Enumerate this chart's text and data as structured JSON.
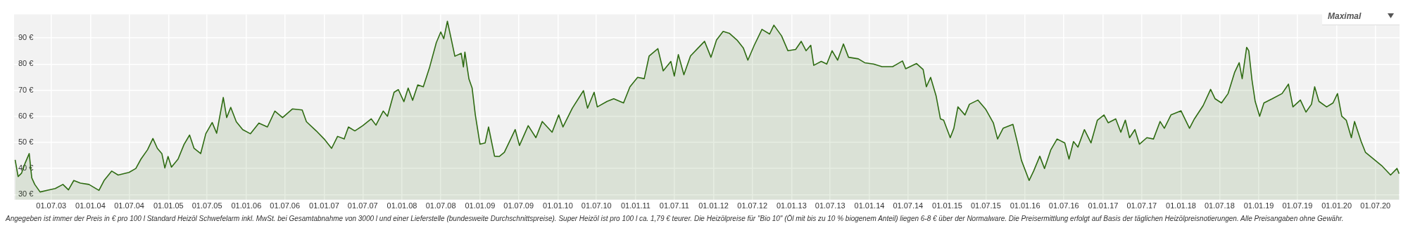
{
  "chart_data": {
    "type": "area",
    "color": "#2e6b12",
    "grid": true,
    "legend": false,
    "annotations": [
      "Angegeben ist immer der Preis in € pro 100 l Standard Heizöl Schwefelarm inkl. MwSt. bei Gesamtabnahme von 3000 l und einer Lieferstelle (bundesweite Durchschnittspreise). Super Heizöl ist pro 100 l ca. 1,79 € teurer. Die Heizölpreise für \"Bio 10\" (Öl mit bis zu 10 % biogenem Anteil) liegen 6-8 € über der Normalware. Die Preisermittlung erfolgt auf Basis der täglichen Heizölpreisnotierungen. Alle Preisangaben ohne Gewähr.",
      "Maximal"
    ],
    "xlim": [
      "2003-01-08",
      "2020-10-22"
    ],
    "xticks": [
      {
        "value": "2003-07-01",
        "label": "01.07.03"
      },
      {
        "value": "2004-01-01",
        "label": "01.01.04"
      },
      {
        "value": "2004-07-01",
        "label": "01.07.04"
      },
      {
        "value": "2005-01-01",
        "label": "01.01.05"
      },
      {
        "value": "2005-07-01",
        "label": "01.07.05"
      },
      {
        "value": "2006-01-01",
        "label": "01.01.06"
      },
      {
        "value": "2006-07-01",
        "label": "01.07.06"
      },
      {
        "value": "2007-01-01",
        "label": "01.01.07"
      },
      {
        "value": "2007-07-01",
        "label": "01.07.07"
      },
      {
        "value": "2008-01-01",
        "label": "01.01.08"
      },
      {
        "value": "2008-07-01",
        "label": "01.07.08"
      },
      {
        "value": "2009-01-01",
        "label": "01.01.09"
      },
      {
        "value": "2009-07-01",
        "label": "01.07.09"
      },
      {
        "value": "2010-01-01",
        "label": "01.01.10"
      },
      {
        "value": "2010-07-01",
        "label": "01.07.10"
      },
      {
        "value": "2011-01-01",
        "label": "01.01.11"
      },
      {
        "value": "2011-07-01",
        "label": "01.07.11"
      },
      {
        "value": "2012-01-01",
        "label": "01.01.12"
      },
      {
        "value": "2012-07-01",
        "label": "01.07.12"
      },
      {
        "value": "2013-01-01",
        "label": "01.01.13"
      },
      {
        "value": "2013-07-01",
        "label": "01.07.13"
      },
      {
        "value": "2014-01-01",
        "label": "01.01.14"
      },
      {
        "value": "2014-07-01",
        "label": "01.07.14"
      },
      {
        "value": "2015-01-01",
        "label": "01.01.15"
      },
      {
        "value": "2015-07-01",
        "label": "01.07.15"
      },
      {
        "value": "2016-01-01",
        "label": "01.01.16"
      },
      {
        "value": "2016-07-01",
        "label": "01.07.16"
      },
      {
        "value": "2017-01-01",
        "label": "01.01.17"
      },
      {
        "value": "2017-07-01",
        "label": "01.07.17"
      },
      {
        "value": "2018-01-01",
        "label": "01.01.18"
      },
      {
        "value": "2018-07-01",
        "label": "01.07.18"
      },
      {
        "value": "2019-01-01",
        "label": "01.01.19"
      },
      {
        "value": "2019-07-01",
        "label": "01.07.19"
      },
      {
        "value": "2020-01-01",
        "label": "01.01.20"
      },
      {
        "value": "2020-07-01",
        "label": "01.07.20"
      }
    ],
    "ylim": [
      28,
      99
    ],
    "yticks": [
      {
        "value": 30,
        "label": "30 €"
      },
      {
        "value": 40,
        "label": "40 €"
      },
      {
        "value": 50,
        "label": "50 €"
      },
      {
        "value": 60,
        "label": "60 €"
      },
      {
        "value": 70,
        "label": "70 €"
      },
      {
        "value": 80,
        "label": "80 €"
      },
      {
        "value": 90,
        "label": "90 €"
      }
    ],
    "x": [
      "2003-01-13",
      "2003-01-27",
      "2003-02-12",
      "2003-03-01",
      "2003-03-20",
      "2003-04-01",
      "2003-04-15",
      "2003-05-10",
      "2003-06-20",
      "2003-07-20",
      "2003-08-25",
      "2003-09-20",
      "2003-10-15",
      "2003-11-15",
      "2003-12-25",
      "2004-02-10",
      "2004-03-05",
      "2004-04-10",
      "2004-05-10",
      "2004-06-30",
      "2004-08-01",
      "2004-08-25",
      "2004-09-25",
      "2004-10-20",
      "2004-11-10",
      "2004-12-01",
      "2004-12-15",
      "2004-12-30",
      "2005-01-15",
      "2005-02-15",
      "2005-03-15",
      "2005-04-10",
      "2005-05-01",
      "2005-06-01",
      "2005-06-25",
      "2005-07-25",
      "2005-08-15",
      "2005-09-15",
      "2005-10-01",
      "2005-10-20",
      "2005-11-15",
      "2005-12-15",
      "2006-01-20",
      "2006-03-01",
      "2006-04-10",
      "2006-05-15",
      "2006-06-20",
      "2006-08-05",
      "2006-09-20",
      "2006-10-10",
      "2006-11-25",
      "2007-01-01",
      "2007-02-05",
      "2007-03-05",
      "2007-04-05",
      "2007-04-25",
      "2007-05-25",
      "2007-07-01",
      "2007-08-10",
      "2007-09-01",
      "2007-10-05",
      "2007-10-25",
      "2007-11-25",
      "2007-12-15",
      "2008-01-10",
      "2008-01-30",
      "2008-02-20",
      "2008-03-15",
      "2008-04-10",
      "2008-05-10",
      "2008-06-10",
      "2008-07-01",
      "2008-07-15",
      "2008-08-01",
      "2008-08-20",
      "2008-09-05",
      "2008-10-05",
      "2008-10-15",
      "2008-10-22",
      "2008-11-10",
      "2008-11-25",
      "2008-12-10",
      "2009-01-01",
      "2009-01-25",
      "2009-02-10",
      "2009-03-10",
      "2009-04-01",
      "2009-04-25",
      "2009-06-15",
      "2009-07-05",
      "2009-08-15",
      "2009-09-20",
      "2009-10-20",
      "2009-12-05",
      "2010-01-05",
      "2010-01-25",
      "2010-03-10",
      "2010-05-01",
      "2010-05-20",
      "2010-06-20",
      "2010-07-05",
      "2010-08-20",
      "2010-09-20",
      "2010-11-05",
      "2010-12-05",
      "2011-01-10",
      "2011-02-10",
      "2011-03-05",
      "2011-04-15",
      "2011-05-10",
      "2011-06-15",
      "2011-07-01",
      "2011-07-20",
      "2011-08-15",
      "2011-09-15",
      "2011-10-20",
      "2011-11-20",
      "2011-12-20",
      "2012-01-15",
      "2012-02-15",
      "2012-03-15",
      "2012-04-20",
      "2012-05-20",
      "2012-06-10",
      "2012-07-10",
      "2012-08-15",
      "2012-09-20",
      "2012-10-10",
      "2012-11-15",
      "2012-12-15",
      "2013-01-20",
      "2013-02-15",
      "2013-03-10",
      "2013-04-01",
      "2013-04-15",
      "2013-05-20",
      "2013-06-15",
      "2013-07-10",
      "2013-08-05",
      "2013-09-01",
      "2013-09-25",
      "2013-11-10",
      "2013-12-10",
      "2014-01-20",
      "2014-03-01",
      "2014-04-20",
      "2014-06-05",
      "2014-06-20",
      "2014-08-10",
      "2014-09-10",
      "2014-09-25",
      "2014-10-15",
      "2014-11-10",
      "2014-11-30",
      "2014-12-15",
      "2015-01-15",
      "2015-02-01",
      "2015-02-20",
      "2015-03-25",
      "2015-04-15",
      "2015-05-25",
      "2015-07-01",
      "2015-08-05",
      "2015-08-25",
      "2015-09-20",
      "2015-11-05",
      "2015-11-25",
      "2015-12-15",
      "2016-01-20",
      "2016-02-10",
      "2016-03-10",
      "2016-04-01",
      "2016-05-01",
      "2016-05-30",
      "2016-07-05",
      "2016-07-25",
      "2016-08-15",
      "2016-09-05",
      "2016-10-05",
      "2016-11-05",
      "2016-12-05",
      "2017-01-05",
      "2017-01-25",
      "2017-03-01",
      "2017-03-25",
      "2017-04-15",
      "2017-05-05",
      "2017-05-30",
      "2017-06-20",
      "2017-07-25",
      "2017-08-25",
      "2017-09-25",
      "2017-10-15",
      "2017-11-15",
      "2018-01-01",
      "2018-02-10",
      "2018-03-05",
      "2018-04-15",
      "2018-05-20",
      "2018-06-10",
      "2018-07-10",
      "2018-08-10",
      "2018-09-10",
      "2018-10-01",
      "2018-10-15",
      "2018-11-05",
      "2018-11-15",
      "2018-11-30",
      "2018-12-15",
      "2019-01-05",
      "2019-01-25",
      "2019-03-05",
      "2019-04-20",
      "2019-05-20",
      "2019-06-10",
      "2019-07-15",
      "2019-08-10",
      "2019-09-05",
      "2019-09-20",
      "2019-10-10",
      "2019-11-15",
      "2019-12-15",
      "2020-01-05",
      "2020-01-25",
      "2020-02-15",
      "2020-03-10",
      "2020-03-25",
      "2020-04-25",
      "2020-05-15",
      "2020-06-15",
      "2020-07-30",
      "2020-09-10",
      "2020-10-10",
      "2020-10-20"
    ],
    "values": [
      43.3,
      36.9,
      38.2,
      42.1,
      45.7,
      36.4,
      33.9,
      31.0,
      31.8,
      32.3,
      33.9,
      31.8,
      35.4,
      34.4,
      33.9,
      31.6,
      35.4,
      39.0,
      37.5,
      38.5,
      40.0,
      43.6,
      47.2,
      51.5,
      47.7,
      45.7,
      40.2,
      44.6,
      40.5,
      43.6,
      49.2,
      52.8,
      47.7,
      45.7,
      53.3,
      57.6,
      53.5,
      67.2,
      59.5,
      63.4,
      57.9,
      54.9,
      53.3,
      57.4,
      55.9,
      62.0,
      59.5,
      62.8,
      62.4,
      57.9,
      54.4,
      51.3,
      47.7,
      52.3,
      51.3,
      55.9,
      54.4,
      56.4,
      59.0,
      56.6,
      62.0,
      60.0,
      69.2,
      70.2,
      65.6,
      70.8,
      66.1,
      72.0,
      71.3,
      78.9,
      88.2,
      92.3,
      89.7,
      96.4,
      89.2,
      83.0,
      84.1,
      78.9,
      84.6,
      74.3,
      70.8,
      60.5,
      49.3,
      49.8,
      55.9,
      44.7,
      44.6,
      46.2,
      54.9,
      48.8,
      56.4,
      51.8,
      58.0,
      53.9,
      60.5,
      55.9,
      63.1,
      69.8,
      63.1,
      69.2,
      63.6,
      65.7,
      66.7,
      65.1,
      71.3,
      74.9,
      74.4,
      83.1,
      85.9,
      77.4,
      81.0,
      75.4,
      83.6,
      75.9,
      83.1,
      86.1,
      88.7,
      82.6,
      89.2,
      92.5,
      91.8,
      89.2,
      86.1,
      81.5,
      87.2,
      93.3,
      91.5,
      94.9,
      90.8,
      85.1,
      85.6,
      88.7,
      85.1,
      87.2,
      79.5,
      81.0,
      80.0,
      85.1,
      81.5,
      87.7,
      82.6,
      82.0,
      80.5,
      80.0,
      79.0,
      79.0,
      81.2,
      78.2,
      80.2,
      77.9,
      71.3,
      74.9,
      67.7,
      59.0,
      58.5,
      51.8,
      55.4,
      63.6,
      60.5,
      64.6,
      66.2,
      62.6,
      57.5,
      51.3,
      55.4,
      56.9,
      50.3,
      43.1,
      35.4,
      39.0,
      44.7,
      40.0,
      47.2,
      51.3,
      49.8,
      43.6,
      50.3,
      48.2,
      54.9,
      49.8,
      58.5,
      60.5,
      57.5,
      59.0,
      53.9,
      58.5,
      51.8,
      54.9,
      49.3,
      51.8,
      51.3,
      58.0,
      55.4,
      60.5,
      62.1,
      55.4,
      59.0,
      64.1,
      70.3,
      66.7,
      65.1,
      68.7,
      76.9,
      80.5,
      74.4,
      86.4,
      85.1,
      73.9,
      65.7,
      60.0,
      65.1,
      66.7,
      68.7,
      72.3,
      63.6,
      66.2,
      61.6,
      64.6,
      71.3,
      65.7,
      63.6,
      65.1,
      68.7,
      60.0,
      58.5,
      51.8,
      58.0,
      50.3,
      46.2,
      44.1,
      41.1,
      37.5,
      40.0,
      38.0
    ]
  }
}
